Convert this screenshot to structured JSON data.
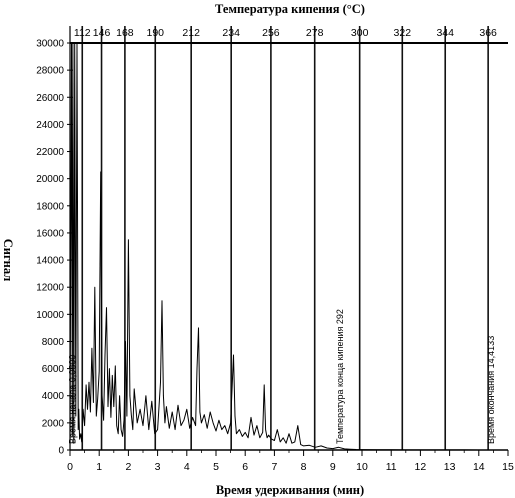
{
  "chart_data": {
    "type": "line",
    "title": "Температура кипения (°C)",
    "xlabel": "Время удерживания (мин)",
    "ylabel": "Сигнал",
    "xlim": [
      0,
      15
    ],
    "ylim": [
      0,
      30000
    ],
    "grid": false,
    "x_ticks": [
      "0",
      "1",
      "2",
      "3",
      "4",
      "5",
      "6",
      "7",
      "8",
      "9",
      "10",
      "11",
      "12",
      "13",
      "14",
      "15"
    ],
    "y_ticks": [
      "0",
      "2000",
      "4000",
      "6000",
      "8000",
      "10000",
      "12000",
      "14000",
      "16000",
      "18000",
      "20000",
      "22000",
      "24000",
      "26000",
      "28000",
      "30000"
    ],
    "boiling_point_axis": {
      "labels": [
        "112",
        "146",
        "168",
        "190",
        "212",
        "234",
        "256",
        "278",
        "300",
        "322",
        "344",
        "366"
      ],
      "x": [
        0.42,
        1.08,
        1.88,
        2.92,
        4.15,
        5.52,
        6.88,
        8.38,
        9.92,
        11.38,
        12.85,
        14.32
      ]
    },
    "annotations": [
      {
        "text": "Время начала 0,0800",
        "x": 0.08
      },
      {
        "text": "Температура конца кипения 292",
        "x": 9.25
      },
      {
        "text": "Время окончания 14,4133",
        "x": 14.4133
      }
    ],
    "series": [
      {
        "x": [
          0,
          0.05,
          0.08,
          0.1,
          0.13,
          0.16,
          0.2,
          0.24,
          0.28,
          0.3,
          0.33,
          0.37,
          0.4,
          0.45,
          0.5,
          0.55,
          0.6,
          0.65,
          0.7,
          0.75,
          0.8,
          0.85,
          0.9,
          0.95,
          1.0,
          1.05,
          1.1,
          1.15,
          1.2,
          1.25,
          1.3,
          1.35,
          1.4,
          1.45,
          1.5,
          1.55,
          1.6,
          1.65,
          1.7,
          1.75,
          1.8,
          1.85,
          1.9,
          1.95,
          2.0,
          2.05,
          2.1,
          2.15,
          2.2,
          2.3,
          2.4,
          2.5,
          2.6,
          2.7,
          2.8,
          2.9,
          3.0,
          3.1,
          3.15,
          3.2,
          3.25,
          3.3,
          3.4,
          3.5,
          3.6,
          3.7,
          3.8,
          3.9,
          4.0,
          4.1,
          4.2,
          4.3,
          4.35,
          4.4,
          4.45,
          4.5,
          4.6,
          4.7,
          4.8,
          4.9,
          5.0,
          5.1,
          5.2,
          5.3,
          5.4,
          5.5,
          5.6,
          5.65,
          5.7,
          5.8,
          5.9,
          6.0,
          6.1,
          6.2,
          6.3,
          6.4,
          6.5,
          6.6,
          6.65,
          6.7,
          6.75,
          6.8,
          6.9,
          7.0,
          7.1,
          7.2,
          7.3,
          7.4,
          7.5,
          7.6,
          7.7,
          7.8,
          7.9,
          8.0,
          8.2,
          8.4,
          8.6,
          8.8,
          9.0,
          9.2,
          9.4,
          9.6,
          9.8,
          10.0,
          10.5,
          11.0,
          11.5,
          12.0,
          12.5,
          13.0,
          13.5,
          14.0,
          14.4
        ],
        "y": [
          0,
          30000,
          1000,
          30000,
          500,
          30000,
          2500,
          30000,
          1500,
          3000,
          800,
          1200,
          600,
          3000,
          1800,
          4800,
          3000,
          5000,
          2800,
          7500,
          3500,
          12000,
          2500,
          3800,
          5800,
          20500,
          4000,
          2200,
          7000,
          10500,
          3200,
          6000,
          2400,
          5500,
          3200,
          6200,
          1800,
          1200,
          4000,
          1500,
          1000,
          2200,
          8000,
          2500,
          15500,
          4000,
          2600,
          1500,
          4500,
          2000,
          3000,
          1800,
          4000,
          1500,
          3600,
          1200,
          1500,
          5000,
          11000,
          4000,
          2000,
          3200,
          1600,
          2800,
          1500,
          3300,
          1800,
          2200,
          3000,
          1600,
          2400,
          1800,
          6000,
          9000,
          2800,
          2000,
          2600,
          1600,
          2800,
          2000,
          1400,
          2200,
          1500,
          1800,
          1200,
          2000,
          7000,
          2500,
          1200,
          1500,
          1000,
          1300,
          900,
          2400,
          1100,
          1800,
          900,
          1300,
          4800,
          1500,
          900,
          1100,
          800,
          700,
          1500,
          600,
          900,
          500,
          1200,
          500,
          600,
          1800,
          400,
          300,
          350,
          200,
          300,
          150,
          100,
          200,
          80,
          60,
          40,
          30,
          20,
          15,
          10,
          8,
          6,
          5,
          4,
          3,
          2
        ]
      }
    ]
  }
}
